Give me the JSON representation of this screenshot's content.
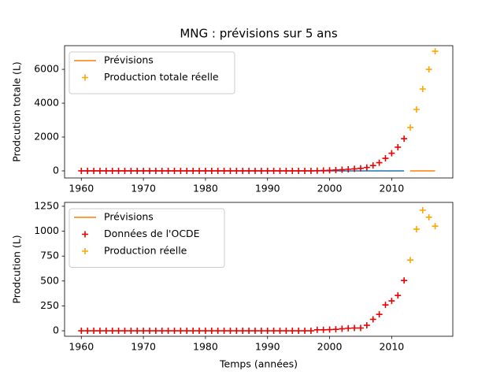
{
  "chart_data": [
    {
      "type": "line",
      "title": "MNG : prévisions sur 5 ans",
      "ylabel": "Prodcution totale (L)",
      "xlim": [
        1957.3,
        2019.85
      ],
      "xticks": [
        1960,
        1970,
        1980,
        1990,
        2000,
        2010
      ],
      "ylim": [
        -420,
        7400
      ],
      "yticks": [
        0,
        2000,
        4000,
        6000
      ],
      "grid": false,
      "legend": "upper left",
      "series": [
        {
          "color": "#1f77b4",
          "style": "line",
          "x": [
            1960,
            1961,
            1962,
            1963,
            1964,
            1965,
            1966,
            1967,
            1968,
            1969,
            1970,
            1971,
            1972,
            1973,
            1974,
            1975,
            1976,
            1977,
            1978,
            1979,
            1980,
            1981,
            1982,
            1983,
            1984,
            1985,
            1986,
            1987,
            1988,
            1989,
            1990,
            1991,
            1992,
            1993,
            1994,
            1995,
            1996,
            1997,
            1998,
            1999,
            2000,
            2001,
            2002,
            2003,
            2004,
            2005,
            2006,
            2007,
            2008,
            2009,
            2010,
            2011,
            2012
          ],
          "values": [
            0,
            0,
            0,
            0,
            0,
            0,
            0,
            0,
            0,
            0,
            0,
            0,
            0,
            0,
            0,
            0,
            0,
            0,
            0,
            0,
            0,
            0,
            0,
            0,
            0,
            0,
            0,
            0,
            0,
            0,
            0,
            0,
            0,
            0,
            0,
            0,
            0,
            0,
            0,
            0,
            0,
            0,
            0,
            0,
            0,
            0,
            0,
            0,
            0,
            0,
            0,
            0,
            0
          ]
        },
        {
          "color": "#ee0000",
          "style": "marker",
          "x": [
            1960,
            1961,
            1962,
            1963,
            1964,
            1965,
            1966,
            1967,
            1968,
            1969,
            1970,
            1971,
            1972,
            1973,
            1974,
            1975,
            1976,
            1977,
            1978,
            1979,
            1980,
            1981,
            1982,
            1983,
            1984,
            1985,
            1986,
            1987,
            1988,
            1989,
            1990,
            1991,
            1992,
            1993,
            1994,
            1995,
            1996,
            1997,
            1998,
            1999,
            2000,
            2001,
            2002,
            2003,
            2004,
            2005,
            2006,
            2007,
            2008,
            2009,
            2010,
            2011,
            2012
          ],
          "values": [
            0,
            0,
            0,
            0,
            0,
            0,
            0,
            0,
            0,
            0,
            0,
            0,
            0,
            0,
            0,
            0,
            0,
            0,
            0,
            0,
            0,
            0,
            0,
            0,
            0,
            0,
            0,
            0,
            0,
            0,
            0,
            0,
            0,
            0,
            0,
            0,
            0,
            0,
            10,
            20,
            32,
            47,
            67,
            92,
            120,
            148,
            203,
            318,
            483,
            743,
            1043,
            1398,
            1903
          ]
        },
        {
          "name": "Prévisions",
          "color": "#ff7f0e",
          "style": "line",
          "x": [
            2013,
            2014,
            2015,
            2016,
            2017
          ],
          "values": [
            0,
            0,
            0,
            0,
            0
          ]
        },
        {
          "name": "Production totale réelle",
          "color": "#ffa500",
          "style": "marker",
          "x": [
            2013,
            2014,
            2015,
            2016,
            2017
          ],
          "values": [
            2560,
            3630,
            4840,
            6000,
            7070
          ]
        }
      ]
    },
    {
      "type": "line",
      "ylabel": "Prodcution (L)",
      "xlabel": "Temps (années)",
      "xlim": [
        1957.3,
        2019.85
      ],
      "xticks": [
        1960,
        1970,
        1980,
        1990,
        2000,
        2010
      ],
      "ylim": [
        -55,
        1289
      ],
      "yticks": [
        0,
        250,
        500,
        750,
        1000,
        1250
      ],
      "grid": false,
      "legend": "upper left",
      "series": [
        {
          "name": "Prévisions",
          "color": "#ff7f0e",
          "style": "line",
          "x": [],
          "values": []
        },
        {
          "name": "Données de l'OCDE",
          "color": "#ee0000",
          "style": "marker",
          "x": [
            1960,
            1961,
            1962,
            1963,
            1964,
            1965,
            1966,
            1967,
            1968,
            1969,
            1970,
            1971,
            1972,
            1973,
            1974,
            1975,
            1976,
            1977,
            1978,
            1979,
            1980,
            1981,
            1982,
            1983,
            1984,
            1985,
            1986,
            1987,
            1988,
            1989,
            1990,
            1991,
            1992,
            1993,
            1994,
            1995,
            1996,
            1997,
            1998,
            1999,
            2000,
            2001,
            2002,
            2003,
            2004,
            2005,
            2006,
            2007,
            2008,
            2009,
            2010,
            2011,
            2012
          ],
          "values": [
            0,
            0,
            0,
            0,
            0,
            0,
            0,
            0,
            0,
            0,
            0,
            0,
            0,
            0,
            0,
            0,
            0,
            0,
            0,
            0,
            0,
            0,
            0,
            0,
            0,
            0,
            0,
            0,
            0,
            0,
            0,
            0,
            0,
            0,
            0,
            0,
            0,
            0,
            10,
            10,
            12,
            15,
            20,
            25,
            28,
            28,
            55,
            115,
            165,
            260,
            300,
            355,
            505
          ]
        },
        {
          "name": "Production réelle",
          "color": "#ffa500",
          "style": "marker",
          "x": [
            2013,
            2014,
            2015,
            2016,
            2017
          ],
          "values": [
            710,
            1020,
            1210,
            1140,
            1050
          ]
        }
      ]
    }
  ]
}
